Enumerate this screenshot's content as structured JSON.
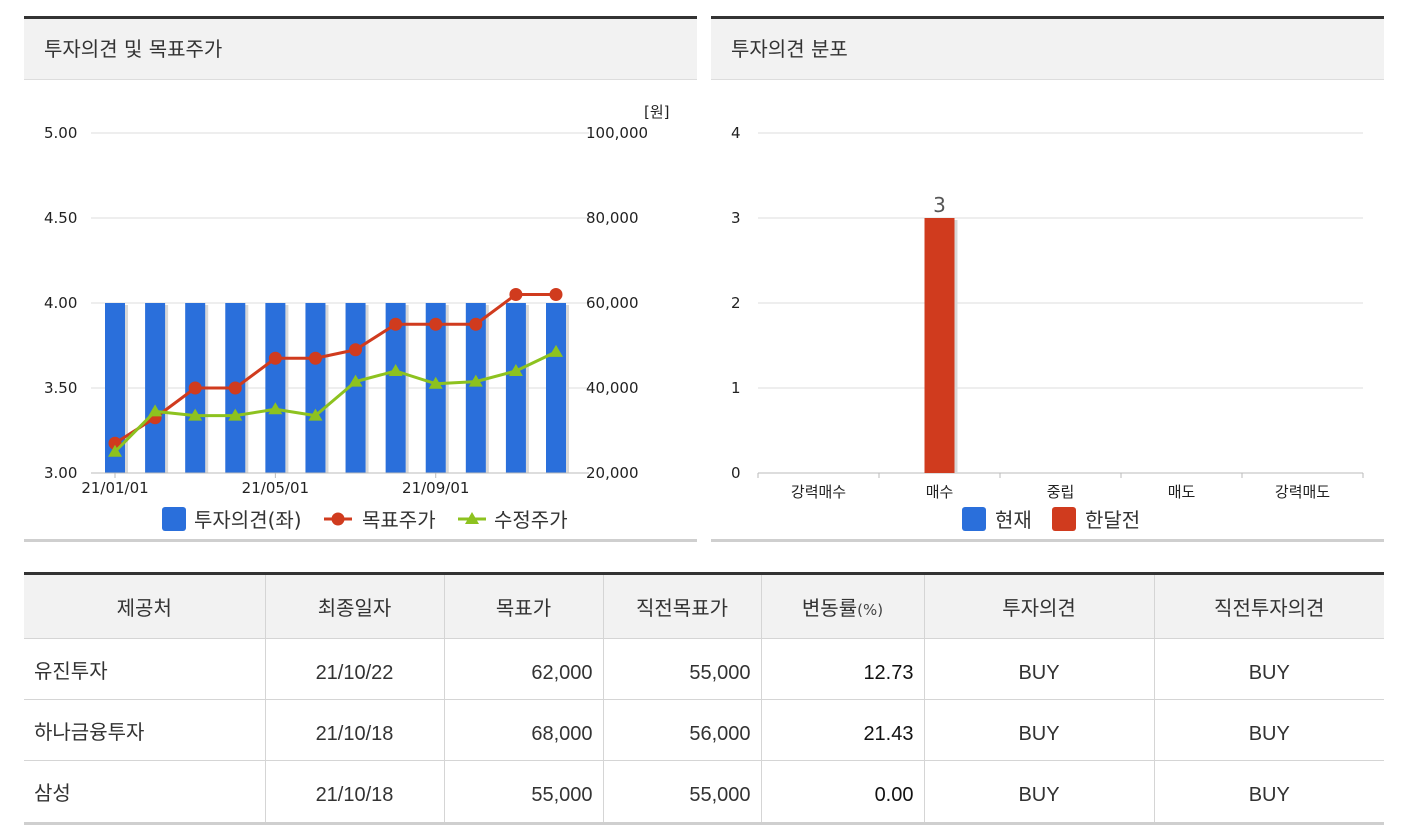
{
  "left_panel": {
    "title": "투자의견 및 목표주가"
  },
  "right_panel": {
    "title": "투자의견 분포"
  },
  "chart_data": [
    {
      "type": "bar+line",
      "left_axis": {
        "ticks": [
          "5.00",
          "4.50",
          "4.00",
          "3.50",
          "3.00"
        ],
        "ylim": [
          3.0,
          5.0
        ]
      },
      "right_axis": {
        "ticks": [
          "100,000",
          "80,000",
          "60,000",
          "40,000",
          "20,000"
        ],
        "ylim": [
          20000,
          100000
        ],
        "unit": "[원]"
      },
      "x_ticks": [
        "21/01/01",
        "21/05/01",
        "21/09/01"
      ],
      "bars": {
        "name": "투자의견(좌)",
        "color": "#2a6fdb",
        "values": [
          4.0,
          4.0,
          4.0,
          4.0,
          4.0,
          4.0,
          4.0,
          4.0,
          4.0,
          4.0,
          4.0,
          4.0
        ]
      },
      "series": [
        {
          "name": "목표주가",
          "color": "#d03b1e",
          "marker": "circle",
          "values": [
            27000,
            33000,
            40000,
            40000,
            47000,
            47000,
            49000,
            55000,
            55000,
            55000,
            62000,
            62000
          ]
        },
        {
          "name": "수정주가",
          "color": "#8dc21f",
          "marker": "triangle",
          "values": [
            25000,
            34500,
            33500,
            33500,
            35000,
            33500,
            41500,
            44000,
            41000,
            41500,
            44000,
            48500
          ]
        }
      ],
      "grid": true,
      "legend": "bottom"
    },
    {
      "type": "bar",
      "ylim": [
        0,
        4
      ],
      "y_ticks": [
        "4",
        "3",
        "2",
        "1",
        "0"
      ],
      "categories": [
        "강력매수",
        "매수",
        "중립",
        "매도",
        "강력매도"
      ],
      "series": [
        {
          "name": "현재",
          "color": "#2a6fdb",
          "values": [
            0,
            0,
            0,
            0,
            0
          ]
        },
        {
          "name": "한달전",
          "color": "#d03b1e",
          "values": [
            0,
            3,
            0,
            0,
            0
          ]
        }
      ],
      "data_labels": [
        "3"
      ],
      "grid": true,
      "legend": "bottom"
    }
  ],
  "table": {
    "headers": [
      "제공처",
      "최종일자",
      "목표가",
      "직전목표가",
      "변동률",
      "투자의견",
      "직전투자의견"
    ],
    "header_suffix": "(%)",
    "rows": [
      [
        "유진투자",
        "21/10/22",
        "62,000",
        "55,000",
        "12.73",
        "BUY",
        "BUY"
      ],
      [
        "하나금융투자",
        "21/10/18",
        "68,000",
        "56,000",
        "21.43",
        "BUY",
        "BUY"
      ],
      [
        "삼성",
        "21/10/18",
        "55,000",
        "55,000",
        "0.00",
        "BUY",
        "BUY"
      ]
    ]
  }
}
